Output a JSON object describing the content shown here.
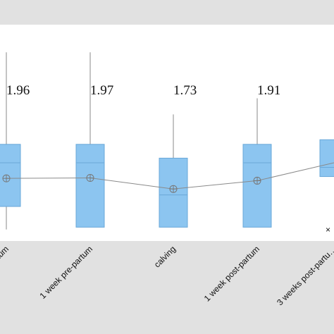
{
  "chart_data": {
    "type": "box",
    "title": "",
    "xlabel": "",
    "ylabel": "",
    "categories": [
      "…rtum",
      "1 week pre-partum",
      "calving",
      "1 week post-partum",
      "3 weeks post-partu…"
    ],
    "value_labels": [
      "1.96",
      "1.97",
      "1.73",
      "1.91",
      ""
    ],
    "boxes": [
      {
        "q1": 1.35,
        "median": 2.3,
        "q3": 2.7,
        "mean": 1.96,
        "whisker_low": 0.85,
        "whisker_high": 4.7
      },
      {
        "q1": 0.9,
        "median": 2.3,
        "q3": 2.7,
        "mean": 1.97,
        "whisker_low": 0.9,
        "whisker_high": 4.7
      },
      {
        "q1": 0.9,
        "median": 1.6,
        "q3": 2.4,
        "mean": 1.73,
        "whisker_low": 0.9,
        "whisker_high": 3.35
      },
      {
        "q1": 0.9,
        "median": 2.3,
        "q3": 2.7,
        "mean": 1.91,
        "whisker_low": 0.9,
        "whisker_high": 3.7
      },
      {
        "q1": 2.0,
        "median": 2.2,
        "q3": 2.8,
        "mean": 2.3,
        "whisker_low": 2.0,
        "whisker_high": 2.8
      }
    ],
    "ylim": [
      0.6,
      5.3
    ],
    "colors": {
      "box": "#8cc5f0",
      "box_edge": "#6aa8d8",
      "line": "#8a8a8a",
      "plot_bg": "#ffffff",
      "outer_bg": "#e1e1e1"
    },
    "legend_marker": "×",
    "grid": false
  }
}
